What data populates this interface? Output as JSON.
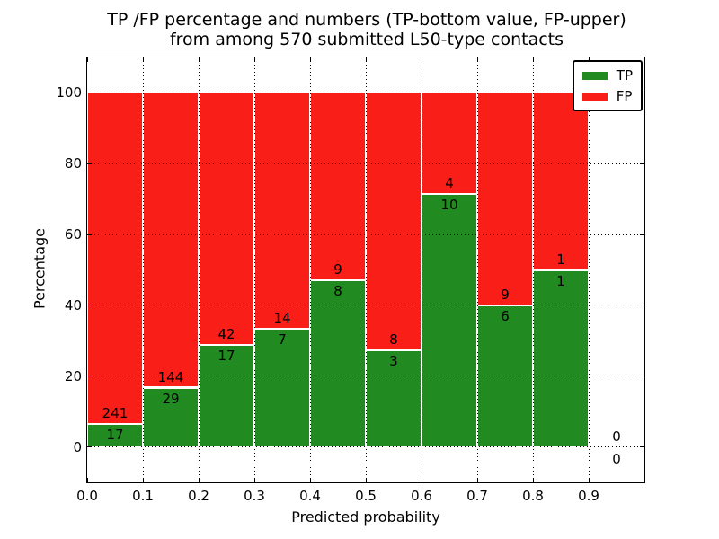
{
  "title": {
    "line1": "TP /FP percentage and numbers (TP-bottom value, FP-upper)",
    "line2": "from among 570 submitted L50-type contacts"
  },
  "axes": {
    "xlabel": "Predicted probability",
    "ylabel": "Percentage"
  },
  "legend": {
    "items": [
      {
        "label": "TP",
        "color": "#218a21"
      },
      {
        "label": "FP",
        "color": "#fa1e19"
      }
    ]
  },
  "colors": {
    "tp": "#218a21",
    "fp": "#fa1e19",
    "background": "#ffffff",
    "text": "#000000",
    "grid": "#000000"
  },
  "chart_data": {
    "type": "bar",
    "stacked": true,
    "normalized_to_percent": true,
    "title": "TP /FP percentage and numbers (TP-bottom value, FP-upper) from among 570 submitted L50-type contacts",
    "xlabel": "Predicted probability",
    "ylabel": "Percentage",
    "xlim": [
      0.0,
      1.0
    ],
    "ylim": [
      -10,
      110
    ],
    "xticks": [
      0.0,
      0.1,
      0.2,
      0.3,
      0.4,
      0.5,
      0.6,
      0.7,
      0.8,
      0.9
    ],
    "xtick_labels": [
      "0.0",
      "0.1",
      "0.2",
      "0.3",
      "0.4",
      "0.5",
      "0.6",
      "0.7",
      "0.8",
      "0.9"
    ],
    "yticks": [
      0,
      20,
      40,
      60,
      80,
      100
    ],
    "ytick_labels": [
      "0",
      "20",
      "40",
      "60",
      "80",
      "100"
    ],
    "grid": true,
    "legend_position": "upper-right",
    "total_contacts": 570,
    "bin_width": 0.1,
    "bins": [
      {
        "range": [
          0.0,
          0.1
        ],
        "tp": 17,
        "fp": 241,
        "tp_percent": 6.6
      },
      {
        "range": [
          0.1,
          0.2
        ],
        "tp": 29,
        "fp": 144,
        "tp_percent": 16.8
      },
      {
        "range": [
          0.2,
          0.3
        ],
        "tp": 17,
        "fp": 42,
        "tp_percent": 28.8
      },
      {
        "range": [
          0.3,
          0.4
        ],
        "tp": 7,
        "fp": 14,
        "tp_percent": 33.3
      },
      {
        "range": [
          0.4,
          0.5
        ],
        "tp": 8,
        "fp": 9,
        "tp_percent": 47.1
      },
      {
        "range": [
          0.5,
          0.6
        ],
        "tp": 3,
        "fp": 8,
        "tp_percent": 27.3
      },
      {
        "range": [
          0.6,
          0.7
        ],
        "tp": 10,
        "fp": 4,
        "tp_percent": 71.4
      },
      {
        "range": [
          0.7,
          0.8
        ],
        "tp": 6,
        "fp": 9,
        "tp_percent": 40.0
      },
      {
        "range": [
          0.8,
          0.9
        ],
        "tp": 1,
        "fp": 1,
        "tp_percent": 50.0
      },
      {
        "range": [
          0.9,
          1.0
        ],
        "tp": 0,
        "fp": 0,
        "tp_percent": null
      }
    ],
    "series": [
      {
        "name": "TP",
        "color": "#218a21",
        "values": [
          17,
          29,
          17,
          7,
          8,
          3,
          10,
          6,
          1,
          0
        ]
      },
      {
        "name": "FP",
        "color": "#fa1e19",
        "values": [
          241,
          144,
          42,
          14,
          9,
          8,
          4,
          9,
          1,
          0
        ]
      }
    ]
  }
}
